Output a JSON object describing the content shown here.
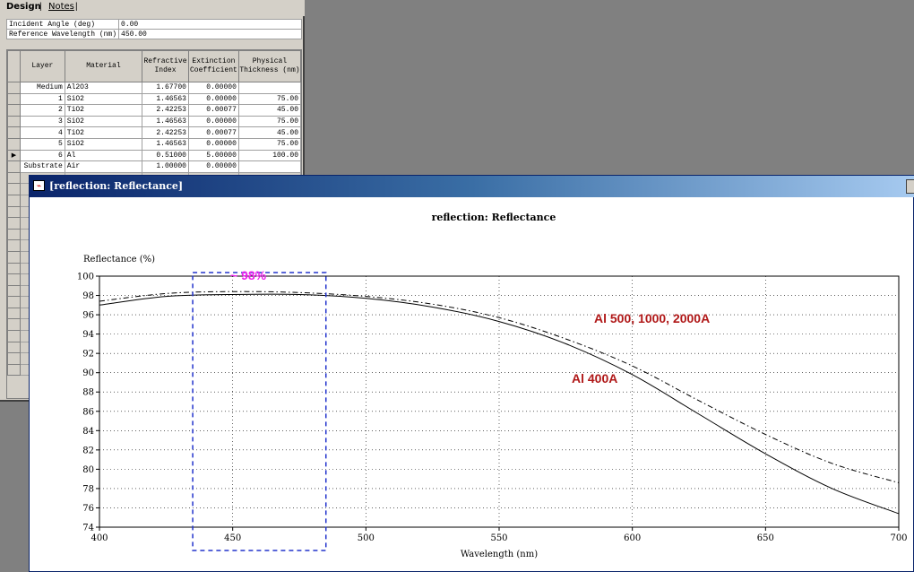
{
  "design_window": {
    "tabs": [
      {
        "label": "Design"
      },
      {
        "label": "Notes"
      }
    ],
    "params": [
      {
        "label": "Incident Angle (deg)",
        "value": "0.00"
      },
      {
        "label": "Reference Wavelength (nm)",
        "value": "450.00"
      }
    ],
    "headers": {
      "layer": "Layer",
      "material": "Material",
      "ri_1": "Refractive",
      "ri_2": "Index",
      "ec_1": "Extinction",
      "ec_2": "Coefficient",
      "th_1": "Physical",
      "th_2": "Thickness (nm)"
    },
    "rows": [
      {
        "layer": "Medium",
        "material": "Al2O3",
        "ri": "1.67700",
        "ec": "0.00000",
        "th": ""
      },
      {
        "layer": "1",
        "material": "SiO2",
        "ri": "1.46563",
        "ec": "0.00000",
        "th": "75.00"
      },
      {
        "layer": "2",
        "material": "TiO2",
        "ri": "2.42253",
        "ec": "0.00077",
        "th": "45.00"
      },
      {
        "layer": "3",
        "material": "SiO2",
        "ri": "1.46563",
        "ec": "0.00000",
        "th": "75.00"
      },
      {
        "layer": "4",
        "material": "TiO2",
        "ri": "2.42253",
        "ec": "0.00077",
        "th": "45.00"
      },
      {
        "layer": "5",
        "material": "SiO2",
        "ri": "1.46563",
        "ec": "0.00000",
        "th": "75.00"
      },
      {
        "layer": "6",
        "material": "Al",
        "ri": "0.51000",
        "ec": "5.00000",
        "th": "100.00"
      },
      {
        "layer": "Substrate",
        "material": "Air",
        "ri": "1.00000",
        "ec": "0.00000",
        "th": ""
      }
    ],
    "current_row_marker": "▶"
  },
  "plot_window": {
    "title": "[reflection: Reflectance]",
    "colors": {
      "highlight_box": "#2233cc",
      "label_98": "#ee22ee",
      "label_al": "#b01818"
    }
  },
  "chart_data": {
    "type": "line",
    "title": "reflection: Reflectance",
    "xlabel": "Wavelength (nm)",
    "ylabel": "Reflectance (%)",
    "xlim": [
      400,
      700
    ],
    "ylim": [
      74,
      100
    ],
    "xticks": [
      400,
      450,
      500,
      550,
      600,
      650,
      700
    ],
    "yticks": [
      74,
      76,
      78,
      80,
      82,
      84,
      86,
      88,
      90,
      92,
      94,
      96,
      98,
      100
    ],
    "grid": true,
    "series": [
      {
        "style": "solid",
        "x": [
          400,
          425,
          450,
          475,
          500,
          525,
          550,
          575,
          600,
          625,
          650,
          675,
          700
        ],
        "values": [
          97.0,
          97.9,
          98.1,
          98.1,
          97.7,
          96.8,
          95.3,
          93.0,
          89.8,
          85.7,
          81.6,
          78.0,
          75.4
        ]
      },
      {
        "style": "dashed",
        "x": [
          400,
          425,
          450,
          475,
          500,
          525,
          550,
          575,
          600,
          625,
          650,
          675,
          700
        ],
        "values": [
          97.4,
          98.2,
          98.4,
          98.3,
          97.9,
          97.1,
          95.7,
          93.5,
          90.7,
          87.1,
          83.6,
          80.6,
          78.6
        ]
      }
    ],
    "annotations": [
      {
        "text": "~ 98%"
      },
      {
        "text": "Al  500, 1000, 2000A"
      },
      {
        "text": "Al  400A"
      }
    ],
    "highlight_range_x": [
      435,
      485
    ]
  }
}
